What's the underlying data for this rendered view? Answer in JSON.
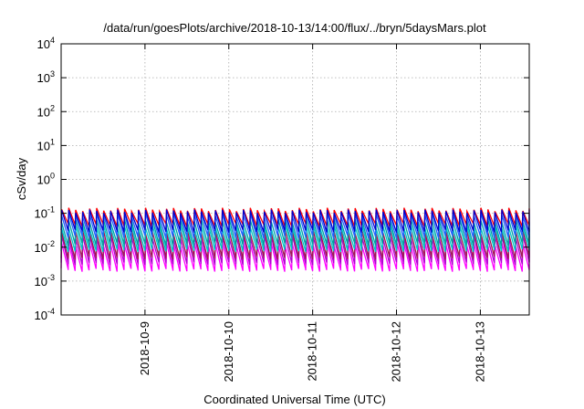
{
  "chart_data": {
    "type": "line",
    "title": "/data/run/goesPlots/archive/2018-10-13/14:00/flux/../bryn/5daysMars.plot",
    "xlabel": "Coordinated Universal Time (UTC)",
    "ylabel": "cSv/day",
    "y_scale": "log",
    "ylim": [
      0.0001,
      10000
    ],
    "y_ticks": [
      {
        "base": "10",
        "exp": "-4"
      },
      {
        "base": "10",
        "exp": "-3"
      },
      {
        "base": "10",
        "exp": "-2"
      },
      {
        "base": "10",
        "exp": "-1"
      },
      {
        "base": "10",
        "exp": "0"
      },
      {
        "base": "10",
        "exp": "1"
      },
      {
        "base": "10",
        "exp": "2"
      },
      {
        "base": "10",
        "exp": "3"
      },
      {
        "base": "10",
        "exp": "4"
      }
    ],
    "xlim": [
      "2018-10-08 00:00",
      "2018-10-13 14:00"
    ],
    "x_ticks": [
      "2018-10-9",
      "2018-10-10",
      "2018-10-11",
      "2018-10-12",
      "2018-10-13"
    ],
    "x_tick_dates": [
      "2018-10-09",
      "2018-10-10",
      "2018-10-11",
      "2018-10-12",
      "2018-10-13"
    ],
    "grid": true,
    "sawtooth_period_hours": 2,
    "series": [
      {
        "color": "#ff0000",
        "peak": 0.13,
        "trough": 0.045
      },
      {
        "color": "#ff00ff",
        "peak": 0.012,
        "trough": 0.0021
      },
      {
        "color": "#b000d0",
        "peak": 0.02,
        "trough": 0.0033
      },
      {
        "color": "#a01850",
        "peak": 0.028,
        "trough": 0.0048
      },
      {
        "color": "#00c8c8",
        "peak": 0.04,
        "trough": 0.008
      },
      {
        "color": "#00a0a0",
        "peak": 0.06,
        "trough": 0.012
      },
      {
        "color": "#2060ff",
        "peak": 0.09,
        "trough": 0.02
      },
      {
        "color": "#0000cc",
        "peak": 0.115,
        "trough": 0.03
      }
    ]
  }
}
